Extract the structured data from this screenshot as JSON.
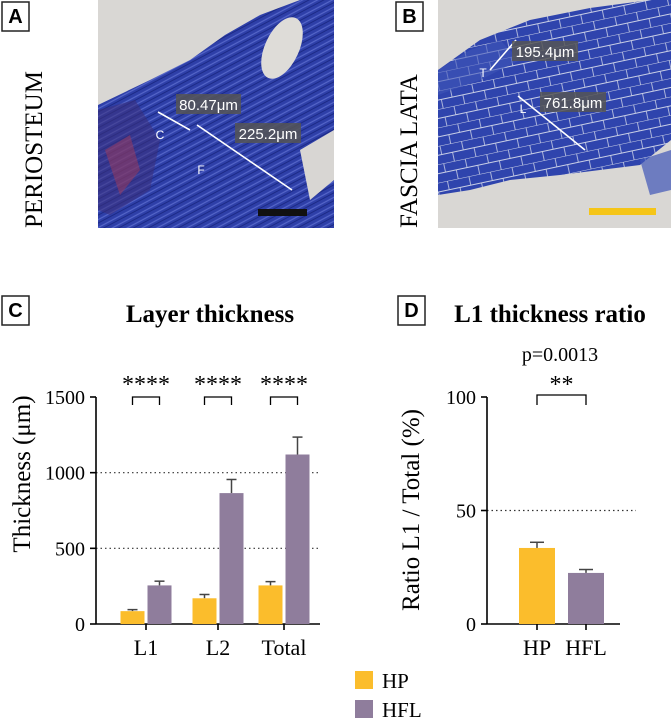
{
  "colors": {
    "hp": "#fbbd2c",
    "hfl": "#8f7d9c",
    "stain_blue": "#2d3fa6",
    "scale_black": "#111111",
    "scale_yellow": "#f5c518"
  },
  "panels": {
    "a": {
      "letter": "A",
      "side_label": "PERIOSTEUM",
      "measure_1": "80.47μm",
      "measure_2": "225.2μm",
      "layer_c": "C",
      "layer_f": "F"
    },
    "b": {
      "letter": "B",
      "side_label": "FASCIA LATA",
      "measure_1": "195.4μm",
      "measure_2": "761.8μm",
      "layer_t": "T",
      "layer_l": "L"
    },
    "c": {
      "letter": "C"
    },
    "d": {
      "letter": "D"
    }
  },
  "legend": {
    "items": [
      {
        "label": "HP",
        "color": "#fbbd2c"
      },
      {
        "label": "HFL",
        "color": "#8f7d9c"
      }
    ]
  },
  "chart_data": [
    {
      "type": "bar",
      "title": "Layer thickness",
      "ylabel": "Thickness (μm)",
      "xlabel": "",
      "ylim": [
        0,
        1500
      ],
      "yticks": [
        0,
        500,
        1000,
        1500
      ],
      "gridlines": [
        500,
        1000
      ],
      "categories": [
        "L1",
        "L2",
        "Total"
      ],
      "series": [
        {
          "name": "HP",
          "values": [
            85,
            170,
            255
          ],
          "errors": [
            10,
            25,
            25
          ]
        },
        {
          "name": "HFL",
          "values": [
            255,
            865,
            1120
          ],
          "errors": [
            28,
            90,
            115
          ]
        }
      ],
      "significance": [
        "****",
        "****",
        "****"
      ]
    },
    {
      "type": "bar",
      "title": "L1 thickness ratio",
      "ylabel": "Ratio L1 / Total (%)",
      "xlabel": "",
      "ylim": [
        0,
        100
      ],
      "yticks": [
        0,
        50,
        100
      ],
      "gridlines": [
        50
      ],
      "categories": [
        "HP",
        "HFL"
      ],
      "series": [
        {
          "name": "Ratio",
          "values": [
            33.5,
            22.5
          ],
          "errors": [
            2.5,
            1.5
          ]
        }
      ],
      "p_value_text": "p=0.0013",
      "significance": "**"
    }
  ]
}
